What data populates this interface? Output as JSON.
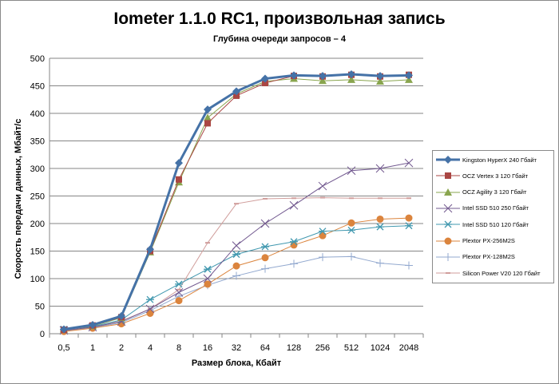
{
  "chart_data": {
    "type": "line",
    "title": "Iometer 1.1.0 RC1, произвольная запись",
    "subtitle": "Глубина очереди запросов – 4",
    "xlabel": "Размер блока, Кбайт",
    "ylabel": "Скорость передачи данных, Мбайт/с",
    "ylim": [
      0,
      500
    ],
    "yticks": [
      "0",
      "50",
      "100",
      "150",
      "200",
      "250",
      "300",
      "350",
      "400",
      "450",
      "500"
    ],
    "grid": true,
    "legend_position": "right",
    "categories": [
      "0,5",
      "1",
      "2",
      "4",
      "8",
      "16",
      "32",
      "64",
      "128",
      "256",
      "512",
      "1024",
      "2048"
    ],
    "series": [
      {
        "name": "Kingston HyperX  240 Гбайт",
        "color": "#4572a7",
        "marker": "diamond",
        "width": 3,
        "values": [
          8,
          16,
          32,
          153,
          310,
          407,
          440,
          463,
          469,
          468,
          471,
          468,
          469
        ]
      },
      {
        "name": "OCZ Vertex  3 120 Гбайт",
        "color": "#aa4643",
        "marker": "square",
        "width": 1,
        "values": [
          7,
          15,
          30,
          150,
          280,
          382,
          432,
          455,
          468,
          467,
          470,
          467,
          470
        ]
      },
      {
        "name": "OCZ Agility  3 120 Гбайт",
        "color": "#89a54e",
        "marker": "triangle",
        "width": 1,
        "values": [
          7,
          14,
          29,
          148,
          275,
          392,
          435,
          458,
          463,
          459,
          461,
          458,
          461
        ]
      },
      {
        "name": "Intel  SSD 510 250 Гбайт",
        "color": "#71588f",
        "marker": "x",
        "width": 1,
        "values": [
          6,
          12,
          22,
          45,
          75,
          100,
          160,
          200,
          233,
          268,
          296,
          300,
          310
        ]
      },
      {
        "name": "Intel  SSD 510 120 Гбайт",
        "color": "#4198af",
        "marker": "star",
        "width": 1,
        "values": [
          8,
          13,
          25,
          62,
          90,
          117,
          144,
          158,
          167,
          186,
          188,
          194,
          196
        ]
      },
      {
        "name": "Plextor PX-256M2S",
        "color": "#db843d",
        "marker": "circle",
        "width": 1,
        "values": [
          4,
          10,
          18,
          37,
          60,
          90,
          123,
          138,
          161,
          178,
          201,
          208,
          210
        ]
      },
      {
        "name": "Plextor PX-128M2S",
        "color": "#93a9cf",
        "marker": "plus",
        "width": 1,
        "values": [
          5,
          11,
          20,
          42,
          68,
          88,
          105,
          118,
          127,
          139,
          140,
          128,
          124
        ]
      },
      {
        "name": "Silicon  Power  V20 120 Гбайт",
        "color": "#d09d9b",
        "marker": "dash",
        "width": 1,
        "values": [
          5,
          12,
          23,
          45,
          80,
          165,
          236,
          245,
          246,
          247,
          246,
          246,
          246
        ]
      }
    ]
  }
}
